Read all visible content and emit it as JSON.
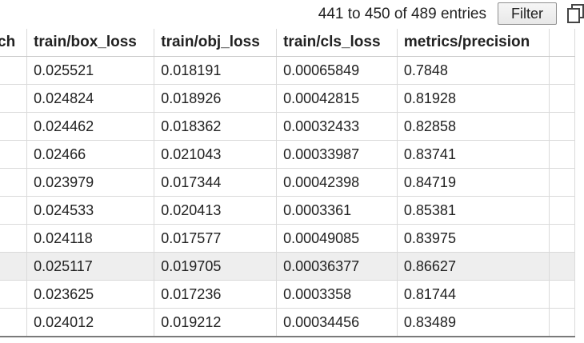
{
  "pagination": {
    "range_text": "441 to 450 of 489 entries",
    "filter_label": "Filter"
  },
  "icons": {
    "copy": "copy-icon"
  },
  "table": {
    "columns": [
      "ch",
      "train/box_loss",
      "train/obj_loss",
      "train/cls_loss",
      "metrics/precision",
      ""
    ],
    "rows": [
      [
        "",
        "0.025521",
        "0.018191",
        "0.00065849",
        "0.7848",
        ""
      ],
      [
        "",
        "0.024824",
        "0.018926",
        "0.00042815",
        "0.81928",
        ""
      ],
      [
        "",
        "0.024462",
        "0.018362",
        "0.00032433",
        "0.82858",
        ""
      ],
      [
        "",
        "0.02466",
        "0.021043",
        "0.00033987",
        "0.83741",
        ""
      ],
      [
        "",
        "0.023979",
        "0.017344",
        "0.00042398",
        "0.84719",
        ""
      ],
      [
        "",
        "0.024533",
        "0.020413",
        "0.0003361",
        "0.85381",
        ""
      ],
      [
        "",
        "0.024118",
        "0.017577",
        "0.00049085",
        "0.83975",
        ""
      ],
      [
        "",
        "0.025117",
        "0.019705",
        "0.00036377",
        "0.86627",
        ""
      ],
      [
        "",
        "0.023625",
        "0.017236",
        "0.0003358",
        "0.81744",
        ""
      ],
      [
        "",
        "0.024012",
        "0.019212",
        "0.00034456",
        "0.83489",
        ""
      ]
    ],
    "highlighted_row": 7,
    "highlight_color": "#eeeeee",
    "grid_color": "#dadada"
  }
}
